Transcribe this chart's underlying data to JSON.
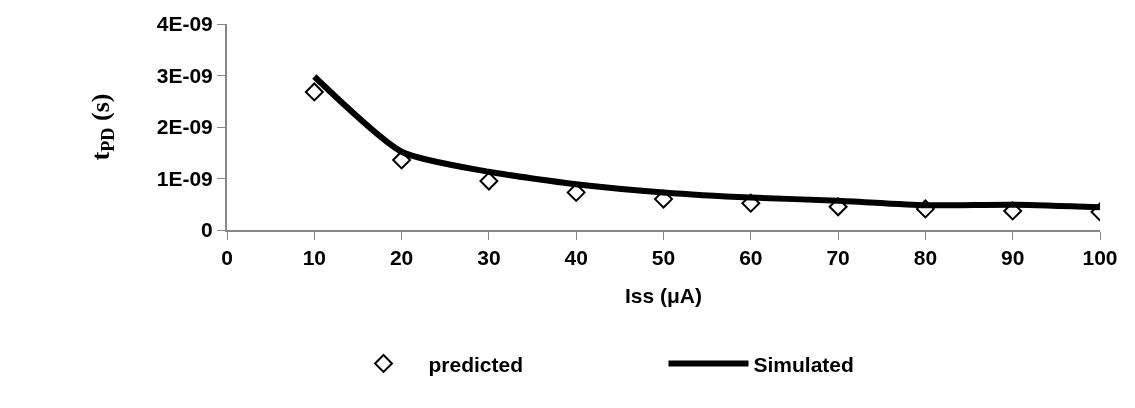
{
  "chart_data": {
    "type": "line",
    "xlabel": "Iss (μA)",
    "ylabel": "t$_{PD}$ (s)",
    "x": [
      10,
      20,
      30,
      40,
      50,
      60,
      70,
      80,
      90,
      100
    ],
    "series": [
      {
        "name": "predicted",
        "type": "scatter",
        "color": "#000000",
        "marker": "diamond",
        "values": [
          2.68e-09,
          1.36e-09,
          9.5e-10,
          7.3e-10,
          6e-10,
          5.2e-10,
          4.5e-10,
          4.1e-10,
          3.7e-10,
          3.5e-10
        ]
      },
      {
        "name": "Simulated",
        "color": "#000000",
        "marker": "none",
        "line_style": "solid",
        "values": [
          2.98e-09,
          1.52e-09,
          1.13e-09,
          8.9e-10,
          7.3e-10,
          6.3e-10,
          5.7e-10,
          4.8e-10,
          4.9e-10,
          4.4e-10
        ]
      }
    ],
    "xlim": [
      0,
      100
    ],
    "xticks": [
      0,
      10,
      20,
      30,
      40,
      50,
      60,
      70,
      80,
      90,
      100
    ],
    "ylim": [
      0,
      4e-09
    ],
    "yticks": [
      0,
      {
        "value": 1e-09,
        "label": "1E-09"
      },
      {
        "value": 2e-09,
        "label": "2E-09"
      },
      {
        "value": 3e-09,
        "label": "3E-09"
      },
      {
        "value": 4e-09,
        "label": "4E-09"
      }
    ],
    "legend": "bottom"
  }
}
